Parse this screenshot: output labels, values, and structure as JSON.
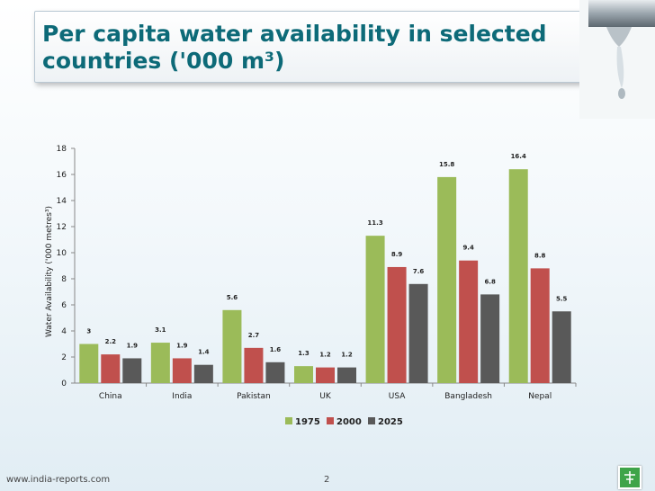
{
  "title": {
    "line1": "Per capita water availability in selected",
    "line2": "countries ('000 m³)"
  },
  "footer": {
    "url": "www.india-reports.com",
    "page": "2"
  },
  "chart_data": {
    "type": "bar",
    "ylabel": "Water Availability ('000 metres³)",
    "ylim": [
      0,
      18
    ],
    "yticks": [
      0,
      2,
      4,
      6,
      8,
      10,
      12,
      14,
      16,
      18
    ],
    "categories": [
      "China",
      "India",
      "Pakistan",
      "UK",
      "USA",
      "Bangladesh",
      "Nepal"
    ],
    "series": [
      {
        "name": "1975",
        "color": "#9bbb59",
        "values": [
          3,
          3.1,
          5.6,
          1.3,
          11.3,
          15.8,
          16.4
        ]
      },
      {
        "name": "2000",
        "color": "#c0504d",
        "values": [
          2.2,
          1.9,
          2.7,
          1.2,
          8.9,
          9.4,
          8.8
        ]
      },
      {
        "name": "2025",
        "color": "#595959",
        "values": [
          1.9,
          1.4,
          1.6,
          1.2,
          7.6,
          6.8,
          5.5
        ]
      }
    ],
    "legend": "bottom-center"
  }
}
